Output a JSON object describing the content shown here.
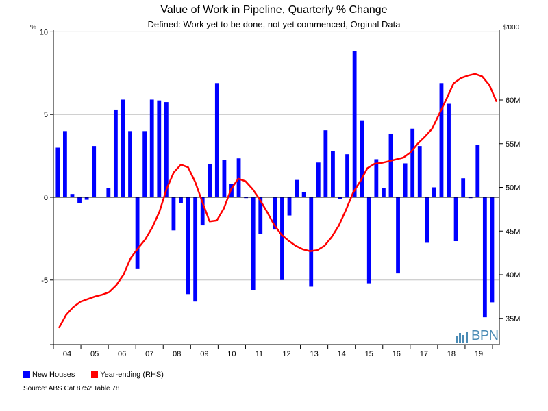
{
  "chart_data": {
    "type": "bar+line",
    "title": "Value of Work in Pipeline, Quarterly % Change",
    "subtitle": "Defined: Work yet to be done, not yet commenced, Orginal Data",
    "y_left_unit": "%",
    "y_right_unit": "$'000",
    "y_left_ticks": [
      "10",
      "5",
      "0",
      "-5"
    ],
    "y_left_tick_values": [
      10,
      5,
      0,
      -5
    ],
    "y_left_range": [
      -8.9,
      10.1
    ],
    "y_right_ticks": [
      "60M",
      "55M",
      "50M",
      "45M",
      "40M",
      "35M"
    ],
    "y_right_tick_values": [
      60,
      55,
      50,
      45,
      40,
      35
    ],
    "y_right_range": [
      32,
      68
    ],
    "y_right_scale_unit": "M",
    "x_year_labels": [
      "04",
      "05",
      "06",
      "07",
      "08",
      "09",
      "10",
      "11",
      "12",
      "13",
      "14",
      "15",
      "16",
      "17",
      "18",
      "19"
    ],
    "series": [
      {
        "name": "New Houses",
        "type": "bar",
        "axis": "left",
        "color": "#0000ff",
        "values": [
          3.0,
          4.0,
          0.2,
          -0.35,
          -0.15,
          3.1,
          0.0,
          0.55,
          5.3,
          5.9,
          4.0,
          -4.3,
          4.0,
          5.9,
          5.85,
          5.75,
          -2.0,
          -0.35,
          -5.85,
          -6.3,
          -1.7,
          2.0,
          6.9,
          2.25,
          0.8,
          2.35,
          -0.05,
          -5.6,
          -2.2,
          0.0,
          -1.95,
          -5.0,
          -1.1,
          1.05,
          0.3,
          -5.4,
          2.1,
          4.05,
          2.8,
          -0.1,
          2.6,
          8.85,
          4.65,
          -5.2,
          2.3,
          0.55,
          3.85,
          -4.6,
          2.05,
          4.15,
          3.1,
          -2.75,
          0.6,
          6.9,
          5.65,
          -2.65,
          1.15,
          -0.05,
          3.15,
          -7.25,
          -6.35
        ]
      },
      {
        "name": "Year-ending (RHS)",
        "type": "line",
        "axis": "right",
        "color": "#ff0000",
        "values": [
          33.9,
          35.4,
          36.3,
          36.9,
          37.2,
          37.5,
          37.7,
          38.0,
          38.8,
          40.0,
          41.9,
          43.0,
          44.0,
          45.4,
          47.2,
          49.8,
          51.7,
          52.6,
          52.3,
          50.6,
          48.3,
          46.1,
          46.2,
          47.6,
          49.8,
          51.0,
          50.7,
          49.8,
          48.6,
          47.2,
          45.7,
          44.6,
          43.9,
          43.3,
          42.9,
          42.7,
          42.8,
          43.3,
          44.3,
          45.6,
          47.4,
          49.4,
          50.7,
          52.2,
          52.7,
          52.8,
          53.0,
          53.2,
          53.4,
          54.0,
          55.0,
          55.8,
          56.7,
          58.4,
          60.1,
          61.9,
          62.5,
          62.8,
          63.0,
          62.7,
          61.7,
          59.8
        ]
      }
    ],
    "legend_placement": "bottom-left",
    "grid": "horizontal at left-axis major ticks"
  },
  "legend": {
    "new_houses": "New Houses",
    "year_ending": "Year-ending (RHS)"
  },
  "source": "Source: ABS Cat 8752 Table 78",
  "logo_text": "BPN",
  "colors": {
    "bars": "#0000ff",
    "line": "#ff0000",
    "grid": "#c0c0c0",
    "logo": "#4a8bb5"
  }
}
